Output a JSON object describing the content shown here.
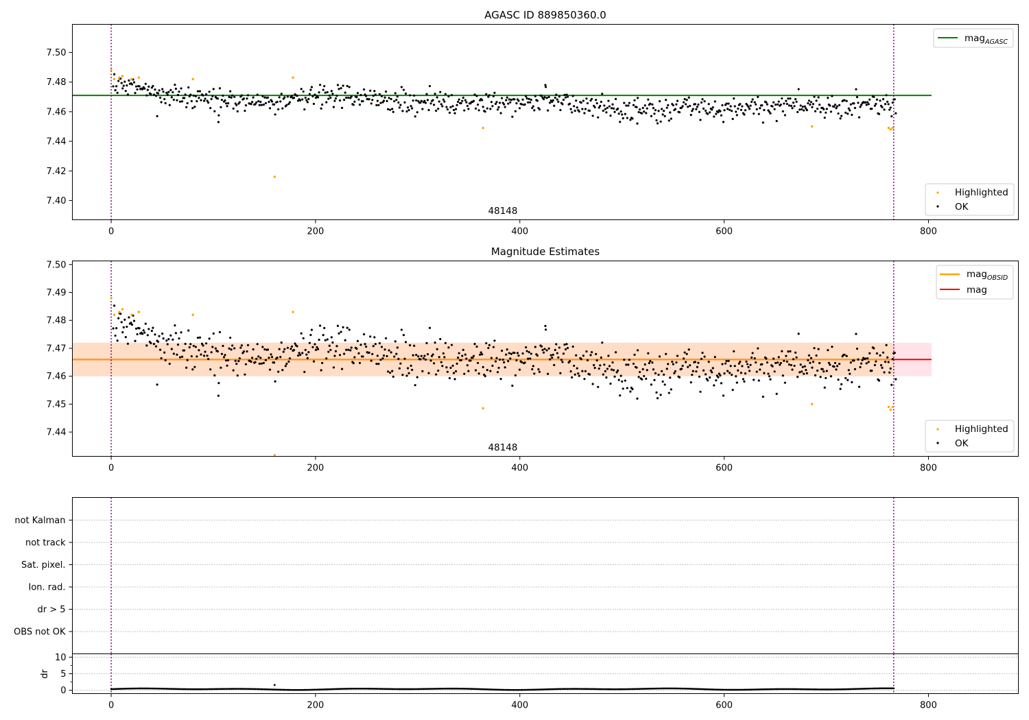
{
  "chart_data": [
    {
      "type": "scatter",
      "title": "AGASC ID 889850360.0",
      "annotation": "48148",
      "xlim": [
        -38,
        888
      ],
      "ylim": [
        7.387,
        7.519
      ],
      "xticks": [
        0,
        200,
        400,
        600,
        800
      ],
      "yticks": [
        "7.40",
        "7.42",
        "7.44",
        "7.46",
        "7.48",
        "7.50"
      ],
      "hlines": [
        {
          "label": "mag",
          "label_sub": "AGASC",
          "y": 7.471,
          "x_range": [
            -38,
            803
          ],
          "color": "#008000"
        }
      ],
      "vlines": [
        0,
        766
      ],
      "series": [
        {
          "name": "Highlighted",
          "color": "#FFA500",
          "points": [
            [
              0,
              7.488
            ],
            [
              3,
              7.482
            ],
            [
              8,
              7.483
            ],
            [
              11,
              7.484
            ],
            [
              20,
              7.482
            ],
            [
              27,
              7.483
            ],
            [
              80,
              7.482
            ],
            [
              160,
              7.416
            ],
            [
              178,
              7.483
            ],
            [
              364,
              7.449
            ],
            [
              686,
              7.45
            ],
            [
              761,
              7.449
            ],
            [
              763,
              7.448
            ],
            [
              765,
              7.449
            ]
          ]
        },
        {
          "name": "OK",
          "color": "#000000",
          "n": 750,
          "x_range": [
            2,
            768
          ],
          "trend": [
            [
              0,
              7.479
            ],
            [
              25,
              7.477
            ],
            [
              50,
              7.471
            ],
            [
              100,
              7.469
            ],
            [
              150,
              7.467
            ],
            [
              200,
              7.471
            ],
            [
              250,
              7.469
            ],
            [
              300,
              7.466
            ],
            [
              350,
              7.465
            ],
            [
              400,
              7.467
            ],
            [
              450,
              7.466
            ],
            [
              500,
              7.461
            ],
            [
              550,
              7.462
            ],
            [
              600,
              7.463
            ],
            [
              650,
              7.464
            ],
            [
              700,
              7.464
            ],
            [
              768,
              7.465
            ]
          ],
          "outliers": [
            [
              45,
              7.457
            ],
            [
              105,
              7.453
            ],
            [
              425,
              7.478
            ],
            [
              515,
              7.452
            ]
          ]
        }
      ],
      "legend": {
        "lines": "top-right",
        "points": "bottom-right"
      }
    },
    {
      "type": "scatter",
      "title": "Magnitude Estimates",
      "annotation": "48148",
      "xlim": [
        -38,
        888
      ],
      "ylim": [
        7.4313,
        7.5013
      ],
      "xticks": [
        0,
        200,
        400,
        600,
        800
      ],
      "yticks": [
        "7.44",
        "7.45",
        "7.46",
        "7.47",
        "7.48",
        "7.49",
        "7.50"
      ],
      "hlines": [
        {
          "label": "mag",
          "label_sub": "OBSID",
          "y": 7.466,
          "x_range": [
            -38,
            766
          ],
          "color": "#FFA500",
          "band": [
            7.46,
            7.472
          ],
          "band_color": "#FFDAB9"
        },
        {
          "label": "mag",
          "label_sub": "",
          "y": 7.466,
          "x_range": [
            -38,
            803
          ],
          "color": "#FF0000",
          "band": [
            7.46,
            7.472
          ],
          "band_color": "#FFC0CB"
        }
      ],
      "vlines": [
        0,
        766
      ],
      "series": [
        {
          "name": "Highlighted",
          "color": "#FFA500",
          "points": [
            [
              0,
              7.488
            ],
            [
              3,
              7.482
            ],
            [
              8,
              7.483
            ],
            [
              11,
              7.484
            ],
            [
              20,
              7.482
            ],
            [
              27,
              7.483
            ],
            [
              80,
              7.482
            ],
            [
              160,
              7.4315
            ],
            [
              178,
              7.483
            ],
            [
              364,
              7.4485
            ],
            [
              686,
              7.45
            ],
            [
              761,
              7.449
            ],
            [
              763,
              7.448
            ],
            [
              765,
              7.449
            ]
          ]
        },
        {
          "name": "OK",
          "color": "#000000",
          "n": 750,
          "x_range": [
            2,
            768
          ],
          "trend": [
            [
              0,
              7.479
            ],
            [
              25,
              7.477
            ],
            [
              50,
              7.471
            ],
            [
              100,
              7.469
            ],
            [
              150,
              7.467
            ],
            [
              200,
              7.471
            ],
            [
              250,
              7.469
            ],
            [
              300,
              7.466
            ],
            [
              350,
              7.465
            ],
            [
              400,
              7.467
            ],
            [
              450,
              7.466
            ],
            [
              500,
              7.461
            ],
            [
              550,
              7.462
            ],
            [
              600,
              7.463
            ],
            [
              650,
              7.464
            ],
            [
              700,
              7.464
            ],
            [
              768,
              7.465
            ]
          ],
          "outliers": [
            [
              45,
              7.457
            ],
            [
              105,
              7.453
            ],
            [
              425,
              7.478
            ],
            [
              515,
              7.452
            ]
          ]
        }
      ],
      "legend": {
        "lines": "top-right",
        "points": "bottom-right"
      }
    },
    {
      "type": "scatter",
      "title": "",
      "xlim": [
        -38,
        888
      ],
      "categories": [
        "not Kalman",
        "not track",
        "Sat. pixel.",
        "Ion. rad.",
        "dr > 5",
        "OBS not OK"
      ],
      "flags": [],
      "vlines": [
        0,
        766
      ]
    },
    {
      "type": "scatter",
      "ylabel": "dr",
      "xlim": [
        -38,
        888
      ],
      "ylim": [
        -1,
        11
      ],
      "xticks": [
        0,
        200,
        400,
        600,
        800
      ],
      "yticks": [
        0,
        5,
        10
      ],
      "vlines": [
        0,
        766
      ],
      "series": [
        {
          "name": "dr",
          "color": "#000000",
          "n": 760,
          "x_range": [
            0,
            766
          ],
          "base": 0.35,
          "amplitude": 0.25,
          "spikes": [
            [
              160,
              1.6
            ]
          ]
        }
      ]
    }
  ]
}
